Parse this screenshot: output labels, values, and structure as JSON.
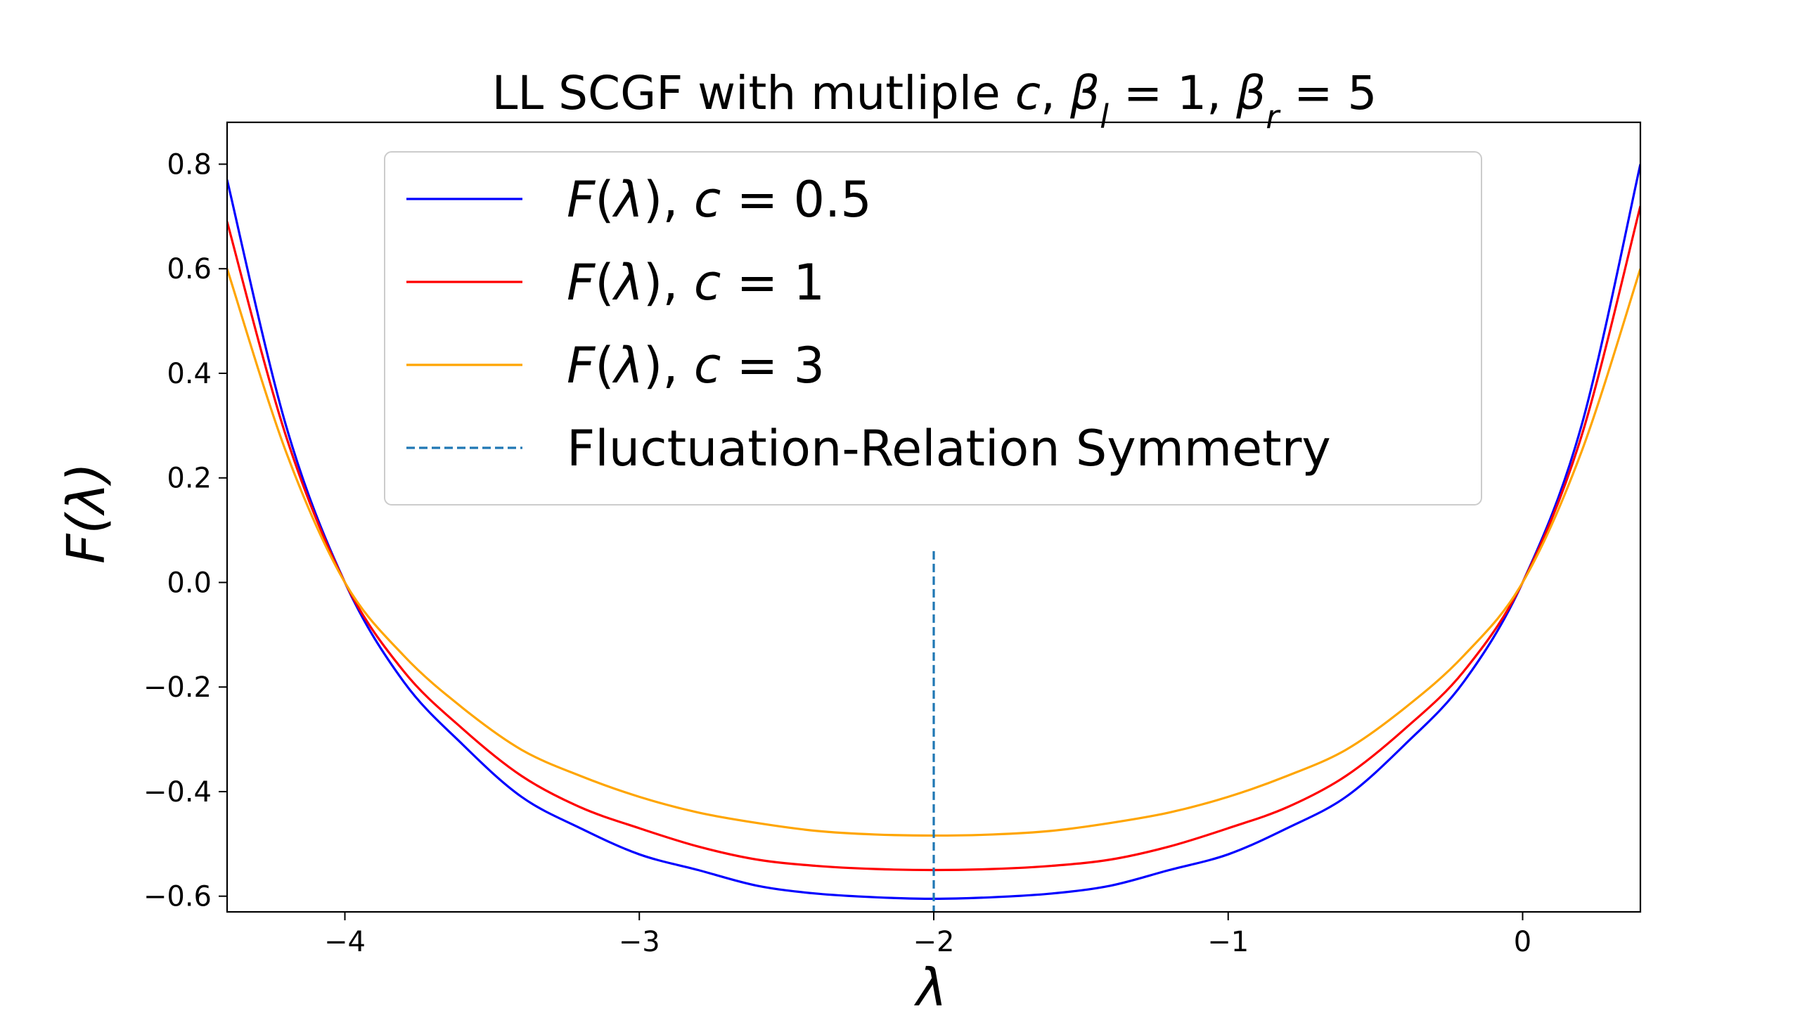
{
  "chart_data": {
    "type": "line",
    "title_parts": [
      {
        "text": "LL SCGF with mutliple ",
        "italic": false
      },
      {
        "text": "c",
        "italic": true
      },
      {
        "text": ", ",
        "italic": false
      },
      {
        "text": "β",
        "italic": true
      },
      {
        "text": "l",
        "italic": true,
        "sub": true
      },
      {
        "text": " = 1, ",
        "italic": false
      },
      {
        "text": "β",
        "italic": true
      },
      {
        "text": "r",
        "italic": true,
        "sub": true
      },
      {
        "text": " = 5",
        "italic": false
      }
    ],
    "xlabel": "λ",
    "ylabel": "F(λ)",
    "xlim": [
      -4.4,
      0.4
    ],
    "ylim": [
      -0.63,
      0.88
    ],
    "xticks": [
      -4,
      -3,
      -2,
      -1,
      0
    ],
    "xtick_labels": [
      "−4",
      "−3",
      "−2",
      "−1",
      "0"
    ],
    "yticks": [
      -0.6,
      -0.4,
      -0.2,
      0.0,
      0.2,
      0.4,
      0.6,
      0.8
    ],
    "ytick_labels": [
      "−0.6",
      "−0.4",
      "−0.2",
      "0.0",
      "0.2",
      "0.4",
      "0.6",
      "0.8"
    ],
    "grid": false,
    "legend_position": "top",
    "x": [
      -4.4,
      -4.2,
      -4.0,
      -3.8,
      -3.6,
      -3.4,
      -3.2,
      -3.0,
      -2.8,
      -2.6,
      -2.4,
      -2.2,
      -2.0,
      -1.8,
      -1.6,
      -1.4,
      -1.2,
      -1.0,
      -0.8,
      -0.6,
      -0.4,
      -0.2,
      0.0,
      0.2,
      0.4
    ],
    "series": [
      {
        "name_prefix": "F(λ), ",
        "name_var": "c",
        "name_value": " = 0.5",
        "color": "#0000ff",
        "style": "solid",
        "values": [
          0.77,
          0.3,
          0.0,
          -0.19,
          -0.31,
          -0.41,
          -0.47,
          -0.52,
          -0.55,
          -0.58,
          -0.595,
          -0.602,
          -0.605,
          -0.602,
          -0.595,
          -0.58,
          -0.55,
          -0.52,
          -0.47,
          -0.41,
          -0.31,
          -0.19,
          0.0,
          0.3,
          0.8
        ]
      },
      {
        "name_prefix": "F(λ), ",
        "name_var": "c",
        "name_value": " = 1",
        "color": "#ff0000",
        "style": "solid",
        "values": [
          0.69,
          0.28,
          0.0,
          -0.17,
          -0.28,
          -0.37,
          -0.43,
          -0.47,
          -0.505,
          -0.53,
          -0.542,
          -0.548,
          -0.55,
          -0.548,
          -0.542,
          -0.53,
          -0.505,
          -0.47,
          -0.43,
          -0.37,
          -0.28,
          -0.17,
          0.0,
          0.28,
          0.72
        ]
      },
      {
        "name_prefix": "F(λ), ",
        "name_var": "c",
        "name_value": " = 3",
        "color": "#ffa500",
        "style": "solid",
        "values": [
          0.6,
          0.25,
          0.0,
          -0.14,
          -0.24,
          -0.32,
          -0.37,
          -0.41,
          -0.44,
          -0.46,
          -0.475,
          -0.482,
          -0.484,
          -0.482,
          -0.475,
          -0.46,
          -0.44,
          -0.41,
          -0.37,
          -0.32,
          -0.24,
          -0.14,
          0.0,
          0.25,
          0.6
        ]
      }
    ],
    "symmetry_line": {
      "name": "Fluctuation-Relation Symmetry",
      "x": -2.0,
      "y_range": [
        -0.63,
        0.06
      ],
      "color": "#1f77b4",
      "style": "dashed"
    }
  }
}
